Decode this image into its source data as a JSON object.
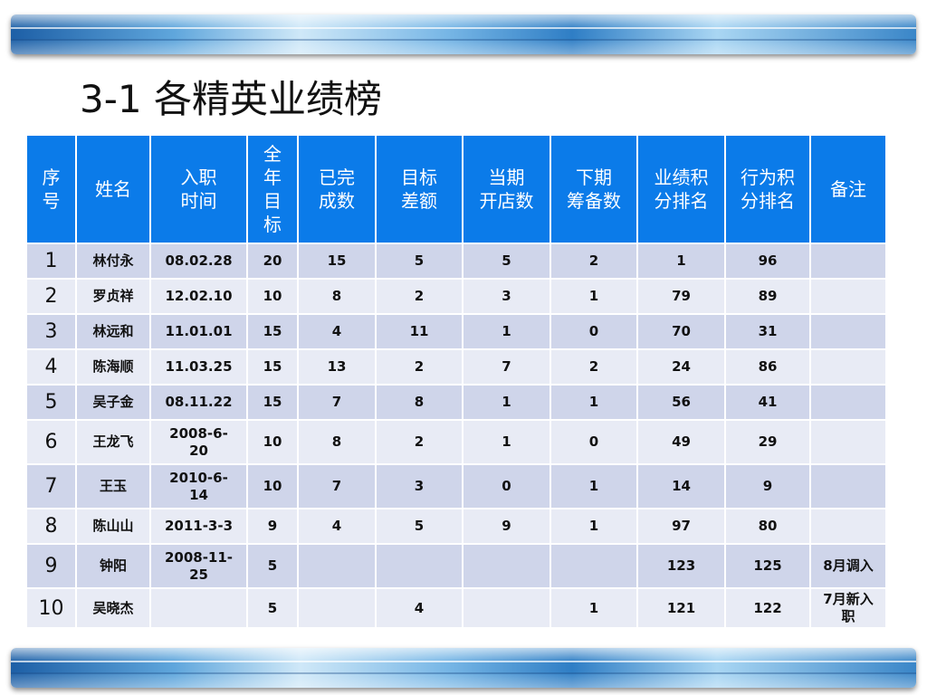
{
  "title": "3-1   各精英业绩榜",
  "table": {
    "headers": [
      "序\n号",
      "姓名",
      "入职\n时间",
      "全\n年\n目\n标",
      "已完\n成数",
      "目标\n差额",
      "当期\n开店数",
      "下期\n筹备数",
      "业绩积\n分排名",
      "行为积\n分排名",
      "备注"
    ],
    "rows": [
      [
        "1",
        "林付永",
        "08.02.28",
        "20",
        "15",
        "5",
        "5",
        "2",
        "1",
        "96",
        ""
      ],
      [
        "2",
        "罗贞祥",
        "12.02.10",
        "10",
        "8",
        "2",
        "3",
        "1",
        "79",
        "89",
        ""
      ],
      [
        "3",
        "林远和",
        "11.01.01",
        "15",
        "4",
        "11",
        "1",
        "0",
        "70",
        "31",
        ""
      ],
      [
        "4",
        "陈海顺",
        "11.03.25",
        "15",
        "13",
        "2",
        "7",
        "2",
        "24",
        "86",
        ""
      ],
      [
        "5",
        "吴子金",
        "08.11.22",
        "15",
        "7",
        "8",
        "1",
        "1",
        "56",
        "41",
        ""
      ],
      [
        "6",
        "王龙飞",
        "2008-6-\n20",
        "10",
        "8",
        "2",
        "1",
        "0",
        "49",
        "29",
        ""
      ],
      [
        "7",
        "王玉",
        "2010-6-\n14",
        "10",
        "7",
        "3",
        "0",
        "1",
        "14",
        "9",
        ""
      ],
      [
        "8",
        "陈山山",
        "2011-3-3",
        "9",
        "4",
        "5",
        "9",
        "1",
        "97",
        "80",
        ""
      ],
      [
        "9",
        "钟阳",
        "2008-11-\n25",
        "5",
        "",
        "",
        "",
        "",
        "123",
        "125",
        "8月调入"
      ],
      [
        "10",
        "吴晓杰",
        "",
        "5",
        "",
        "4",
        "",
        "1",
        "121",
        "122",
        "7月新入\n职"
      ]
    ]
  }
}
